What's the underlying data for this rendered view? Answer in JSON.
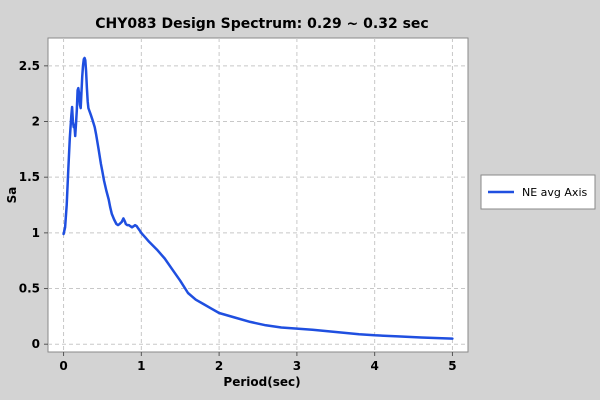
{
  "chart_data": {
    "type": "line",
    "title": "CHY083 Design Spectrum: 0.29 ~ 0.32 sec",
    "xlabel": "Period(sec)",
    "ylabel": "Sa",
    "xlim": [
      -0.2,
      5.2
    ],
    "ylim": [
      -0.07,
      2.75
    ],
    "xticks": [
      0,
      1,
      2,
      3,
      4,
      5
    ],
    "yticks": [
      0,
      0.5,
      1,
      1.5,
      2,
      2.5
    ],
    "xtick_labels": [
      "0",
      "1",
      "2",
      "3",
      "4",
      "5"
    ],
    "ytick_labels": [
      "0",
      "0.5",
      "1",
      "1.5",
      "2",
      "2.5"
    ],
    "grid": true,
    "legend_position": "right",
    "series": [
      {
        "name": "NE avg Axis",
        "color": "#1f4fe0",
        "x": [
          0.0,
          0.02,
          0.04,
          0.06,
          0.08,
          0.1,
          0.11,
          0.12,
          0.13,
          0.14,
          0.15,
          0.16,
          0.17,
          0.18,
          0.19,
          0.2,
          0.21,
          0.22,
          0.23,
          0.24,
          0.25,
          0.26,
          0.27,
          0.28,
          0.29,
          0.3,
          0.31,
          0.32,
          0.33,
          0.34,
          0.35,
          0.37,
          0.4,
          0.42,
          0.45,
          0.48,
          0.5,
          0.52,
          0.55,
          0.58,
          0.6,
          0.62,
          0.65,
          0.68,
          0.7,
          0.72,
          0.75,
          0.77,
          0.79,
          0.8,
          0.82,
          0.84,
          0.86,
          0.88,
          0.9,
          0.92,
          0.94,
          0.96,
          0.98,
          1.0,
          1.05,
          1.1,
          1.2,
          1.3,
          1.4,
          1.5,
          1.6,
          1.7,
          1.8,
          1.9,
          2.0,
          2.2,
          2.4,
          2.6,
          2.8,
          3.0,
          3.2,
          3.5,
          3.8,
          4.0,
          4.3,
          4.6,
          5.0
        ],
        "y": [
          0.99,
          1.05,
          1.25,
          1.55,
          1.85,
          2.05,
          2.13,
          2.0,
          1.95,
          1.97,
          1.87,
          1.98,
          2.1,
          2.28,
          2.3,
          2.25,
          2.15,
          2.12,
          2.25,
          2.4,
          2.5,
          2.56,
          2.57,
          2.55,
          2.45,
          2.3,
          2.18,
          2.12,
          2.1,
          2.08,
          2.06,
          2.02,
          1.95,
          1.88,
          1.75,
          1.62,
          1.55,
          1.47,
          1.38,
          1.3,
          1.23,
          1.17,
          1.12,
          1.08,
          1.07,
          1.08,
          1.1,
          1.13,
          1.1,
          1.08,
          1.07,
          1.07,
          1.06,
          1.05,
          1.06,
          1.07,
          1.06,
          1.04,
          1.02,
          1.0,
          0.96,
          0.92,
          0.85,
          0.77,
          0.67,
          0.57,
          0.46,
          0.4,
          0.36,
          0.32,
          0.28,
          0.24,
          0.2,
          0.17,
          0.15,
          0.14,
          0.13,
          0.11,
          0.09,
          0.08,
          0.07,
          0.06,
          0.05
        ]
      }
    ]
  }
}
